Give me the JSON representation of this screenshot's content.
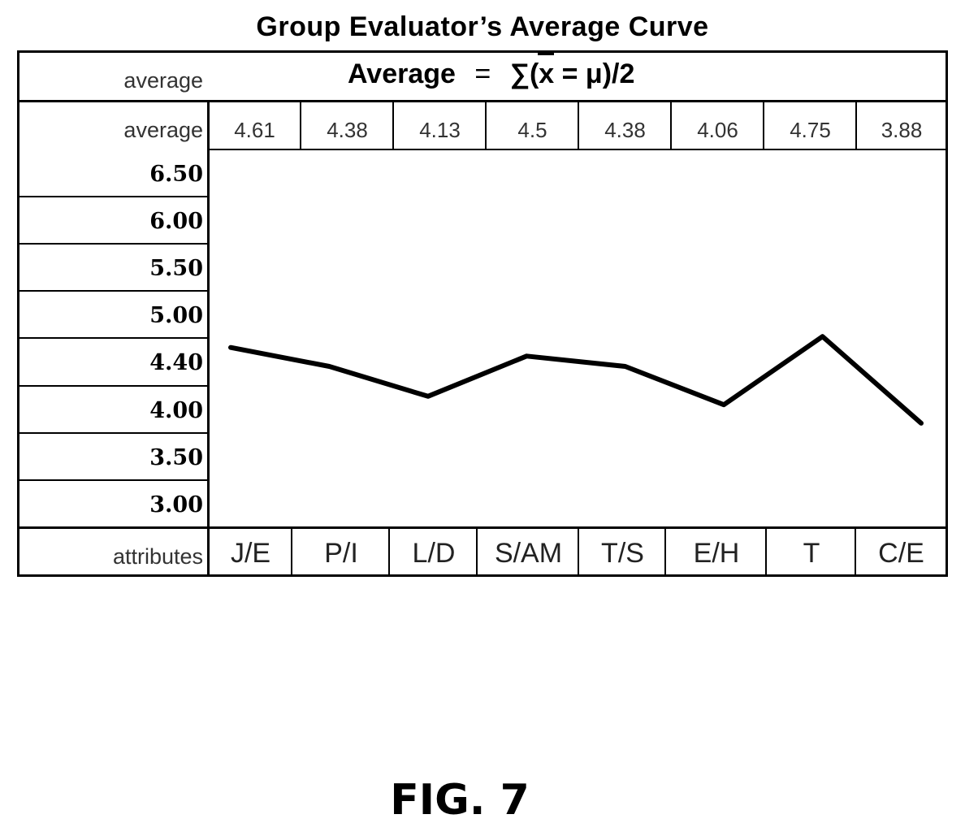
{
  "figure_label": "FIG. 7",
  "chart_data": {
    "type": "line",
    "title": "Group Evaluator’s Average Curve",
    "formula": {
      "prefix": "Average",
      "equals": "=",
      "sum": "∑",
      "body": "(x = μ)/2"
    },
    "header_label": "average",
    "average_row_label": "average",
    "attributes_label": "attributes",
    "categories": [
      "J/E",
      "P/I",
      "L/D",
      "S/AM",
      "T/S",
      "E/H",
      "T",
      "C/E"
    ],
    "average_labels": [
      "4.61",
      "4.38",
      "4.13",
      "4.5",
      "4.38",
      "4.06",
      "4.75",
      "3.88"
    ],
    "series": [
      {
        "values": [
          4.61,
          4.38,
          4.13,
          4.5,
          4.38,
          4.06,
          4.75,
          3.88
        ]
      }
    ],
    "y_tick_labels": [
      "6.50",
      "6.00",
      "5.50",
      "5.00",
      "4.40",
      "4.00",
      "3.50",
      "3.00"
    ],
    "ylim": [
      3.0,
      6.5
    ],
    "grid": false,
    "line_color": "#000000"
  }
}
